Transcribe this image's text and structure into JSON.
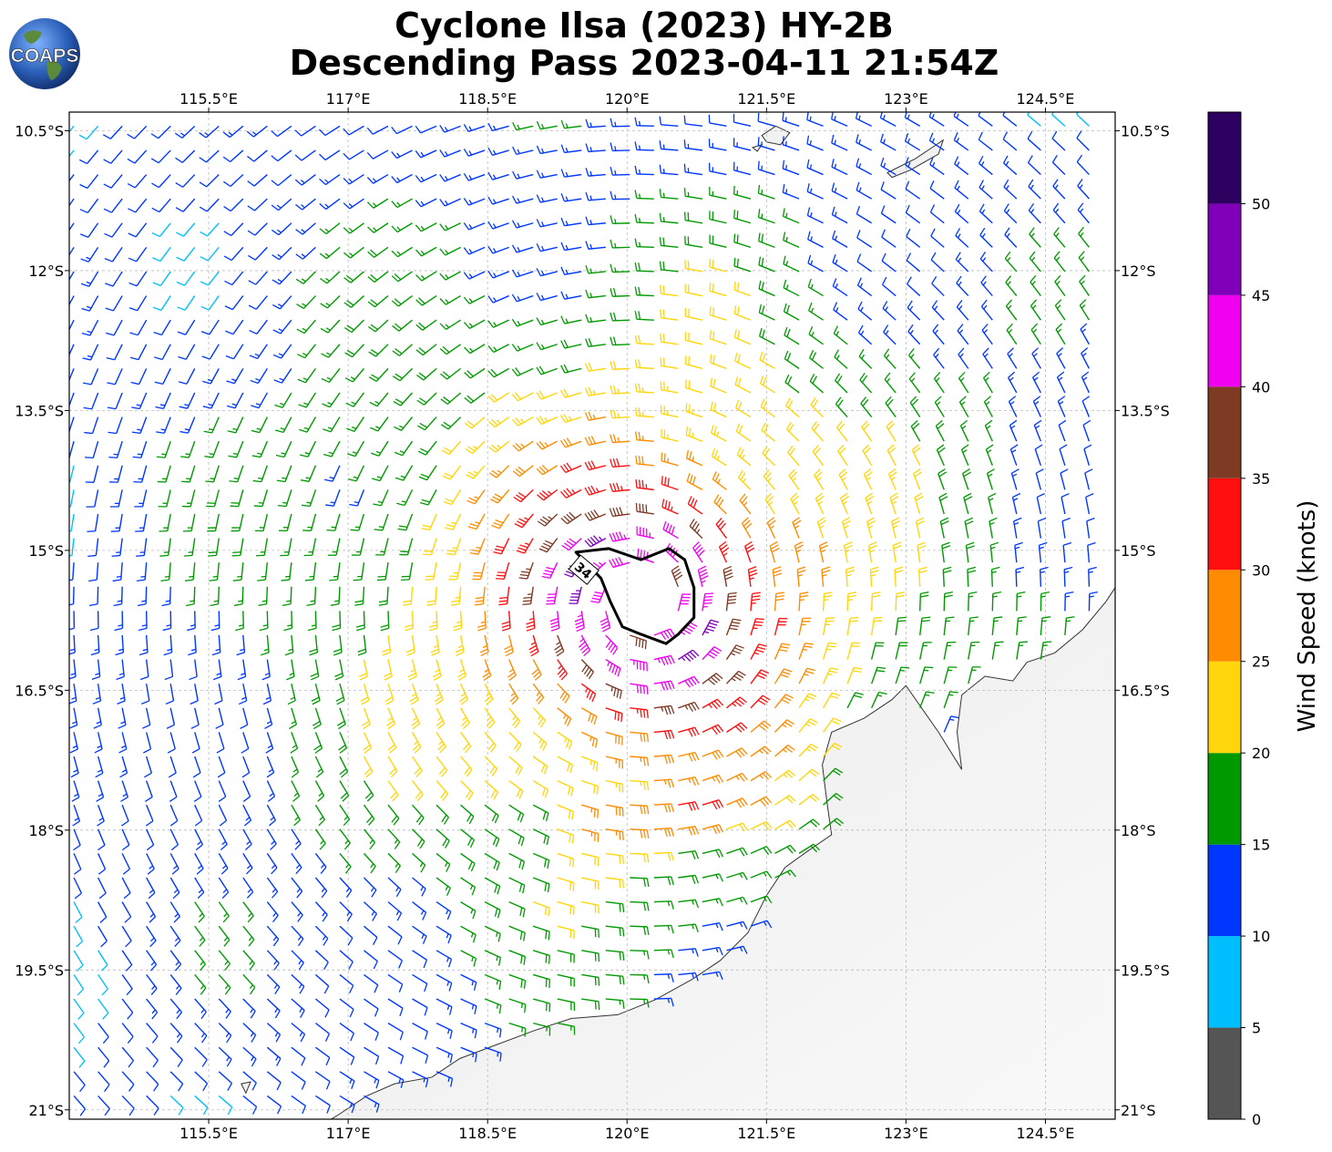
{
  "title": {
    "line1": "Cyclone Ilsa (2023) HY-2B",
    "line2": "Descending Pass 2023-04-11 21:54Z"
  },
  "logo": {
    "text": "COAPS",
    "icon": "globe-icon"
  },
  "map": {
    "lon_range": [
      114.0,
      125.25
    ],
    "lat_range": [
      -21.1,
      -10.3
    ],
    "lon_ticks": [
      {
        "value": 115.5,
        "label": "115.5°E"
      },
      {
        "value": 117.0,
        "label": "117°E"
      },
      {
        "value": 118.5,
        "label": "118.5°E"
      },
      {
        "value": 120.0,
        "label": "120°E"
      },
      {
        "value": 121.5,
        "label": "121.5°E"
      },
      {
        "value": 123.0,
        "label": "123°E"
      },
      {
        "value": 124.5,
        "label": "124.5°E"
      }
    ],
    "lat_ticks": [
      {
        "value": -10.5,
        "label": "10.5°S"
      },
      {
        "value": -12.0,
        "label": "12°S"
      },
      {
        "value": -13.5,
        "label": "13.5°S"
      },
      {
        "value": -15.0,
        "label": "15°S"
      },
      {
        "value": -16.5,
        "label": "16.5°S"
      },
      {
        "value": -18.0,
        "label": "18°S"
      },
      {
        "value": -19.5,
        "label": "19.5°S"
      },
      {
        "value": -21.0,
        "label": "21°S"
      }
    ],
    "grid": true,
    "storm_center": {
      "lon": 120.15,
      "lat": -15.55
    },
    "contour": {
      "label": "34",
      "points": [
        [
          119.45,
          -15.02
        ],
        [
          119.8,
          -14.98
        ],
        [
          120.15,
          -15.1
        ],
        [
          120.45,
          -14.98
        ],
        [
          120.62,
          -15.1
        ],
        [
          120.72,
          -15.4
        ],
        [
          120.72,
          -15.72
        ],
        [
          120.55,
          -15.9
        ],
        [
          120.42,
          -16.0
        ],
        [
          120.15,
          -15.9
        ],
        [
          119.95,
          -15.82
        ],
        [
          119.82,
          -15.55
        ],
        [
          119.72,
          -15.3
        ]
      ]
    },
    "coastline": [
      [
        116.65,
        -21.2
      ],
      [
        116.9,
        -21.05
      ],
      [
        117.2,
        -20.85
      ],
      [
        117.5,
        -20.72
      ],
      [
        117.9,
        -20.65
      ],
      [
        118.2,
        -20.45
      ],
      [
        118.6,
        -20.3
      ],
      [
        119.0,
        -20.15
      ],
      [
        119.4,
        -20.02
      ],
      [
        119.9,
        -19.98
      ],
      [
        120.3,
        -19.82
      ],
      [
        120.7,
        -19.6
      ],
      [
        121.0,
        -19.4
      ],
      [
        121.3,
        -19.1
      ],
      [
        121.5,
        -18.7
      ],
      [
        121.7,
        -18.4
      ],
      [
        121.95,
        -18.22
      ],
      [
        122.2,
        -18.05
      ],
      [
        122.15,
        -17.7
      ],
      [
        122.1,
        -17.3
      ],
      [
        122.2,
        -16.95
      ],
      [
        122.55,
        -16.8
      ],
      [
        122.85,
        -16.6
      ],
      [
        123.0,
        -16.45
      ],
      [
        123.35,
        -16.95
      ],
      [
        123.6,
        -17.35
      ],
      [
        123.55,
        -16.95
      ],
      [
        123.6,
        -16.55
      ],
      [
        123.85,
        -16.35
      ],
      [
        124.15,
        -16.4
      ],
      [
        124.3,
        -16.2
      ],
      [
        124.6,
        -16.1
      ],
      [
        124.9,
        -15.85
      ],
      [
        125.15,
        -15.55
      ],
      [
        125.25,
        -15.4
      ]
    ],
    "islands": [
      [
        [
          121.45,
          -10.55
        ],
        [
          121.6,
          -10.45
        ],
        [
          121.75,
          -10.52
        ],
        [
          121.65,
          -10.65
        ],
        [
          121.5,
          -10.62
        ]
      ],
      [
        [
          122.8,
          -10.95
        ],
        [
          123.1,
          -10.8
        ],
        [
          123.4,
          -10.6
        ],
        [
          123.35,
          -10.75
        ],
        [
          123.05,
          -10.92
        ],
        [
          122.85,
          -11.0
        ]
      ],
      [
        [
          121.35,
          -10.68
        ],
        [
          121.45,
          -10.65
        ],
        [
          121.4,
          -10.72
        ]
      ],
      [
        [
          115.85,
          -20.72
        ],
        [
          115.95,
          -20.7
        ],
        [
          115.9,
          -20.82
        ]
      ]
    ],
    "barb_colors_by_band": [
      "#555555",
      "#00bfff",
      "#0037ff",
      "#009a00",
      "#ffd60b",
      "#ff8c00",
      "#ff0f0f",
      "#7f3a24",
      "#f000f0",
      "#7f00b8",
      "#2e0060"
    ]
  },
  "colorbar": {
    "label": "Wind Speed (knots)",
    "bounds": [
      0,
      5,
      10,
      15,
      20,
      25,
      30,
      35,
      40,
      45,
      50,
      55
    ],
    "tick_labels": [
      "0",
      "5",
      "10",
      "15",
      "20",
      "25",
      "30",
      "35",
      "40",
      "45",
      "50"
    ],
    "colors": [
      "#555555",
      "#00bfff",
      "#0037ff",
      "#009a00",
      "#ffd60b",
      "#ff8c00",
      "#ff0f0f",
      "#7f3a24",
      "#f000f0",
      "#7f00b8",
      "#2e0060"
    ]
  }
}
